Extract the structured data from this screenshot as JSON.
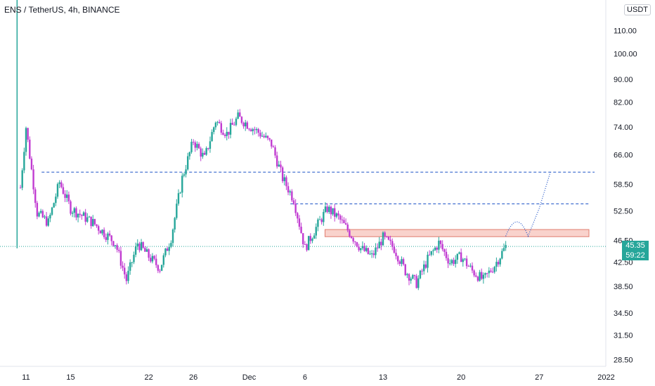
{
  "header": {
    "symbol_title": "ENS / TetherUS, 4h, BINANCE",
    "unit": "USDT"
  },
  "price_tag": {
    "price": "45.35",
    "countdown": "59:22"
  },
  "colors": {
    "up": "#26a69a",
    "down": "#c13bd1",
    "level_line": "#1e53c7",
    "zone_fill": "#f9d2cc",
    "zone_border": "#e07c6e",
    "current_line": "#26a69a",
    "axis_text": "#131722"
  },
  "chart_data": {
    "type": "candlestick",
    "title": "ENS / TetherUS, 4h, BINANCE",
    "y_axis": {
      "scale": "log",
      "ticks": [
        "110.00",
        "100.00",
        "90.00",
        "82.00",
        "74.00",
        "66.00",
        "58.50",
        "52.50",
        "46.50",
        "42.50",
        "38.50",
        "34.50",
        "31.50",
        "28.50"
      ],
      "range": [
        26.5,
        130
      ]
    },
    "x_axis": {
      "ticks": [
        "11",
        "15",
        "22",
        "26",
        "Dec",
        "6",
        "13",
        "20",
        "27",
        "2022"
      ]
    },
    "price_path": [
      {
        "date": "Nov 10",
        "close": 45
      },
      {
        "date": "Nov 11",
        "close": 74
      },
      {
        "date": "Nov 12",
        "close": 52
      },
      {
        "date": "Nov 13",
        "close": 50
      },
      {
        "date": "Nov 14",
        "close": 59
      },
      {
        "date": "Nov 15",
        "close": 53
      },
      {
        "date": "Nov 17",
        "close": 50
      },
      {
        "date": "Nov 19",
        "close": 46
      },
      {
        "date": "Nov 20",
        "close": 39.5
      },
      {
        "date": "Nov 21",
        "close": 46
      },
      {
        "date": "Nov 22",
        "close": 43.5
      },
      {
        "date": "Nov 23",
        "close": 41.5
      },
      {
        "date": "Nov 24",
        "close": 47
      },
      {
        "date": "Nov 25",
        "close": 60
      },
      {
        "date": "Nov 26",
        "close": 70
      },
      {
        "date": "Nov 27",
        "close": 65
      },
      {
        "date": "Nov 28",
        "close": 76
      },
      {
        "date": "Nov 29",
        "close": 72
      },
      {
        "date": "Nov 30",
        "close": 77
      },
      {
        "date": "Dec 1",
        "close": 72
      },
      {
        "date": "Dec 2",
        "close": 69
      },
      {
        "date": "Dec 3",
        "close": 60
      },
      {
        "date": "Dec 4",
        "close": 55
      },
      {
        "date": "Dec 5",
        "close": 45
      },
      {
        "date": "Dec 6",
        "close": 49
      },
      {
        "date": "Dec 7",
        "close": 53
      },
      {
        "date": "Dec 8",
        "close": 51
      },
      {
        "date": "Dec 9",
        "close": 48
      },
      {
        "date": "Dec 10",
        "close": 45
      },
      {
        "date": "Dec 11",
        "close": 43.5
      },
      {
        "date": "Dec 12",
        "close": 47
      },
      {
        "date": "Dec 13",
        "close": 45
      },
      {
        "date": "Dec 14",
        "close": 41
      },
      {
        "date": "Dec 15",
        "close": 39
      },
      {
        "date": "Dec 16",
        "close": 43
      },
      {
        "date": "Dec 17",
        "close": 46
      },
      {
        "date": "Dec 18",
        "close": 42.5
      },
      {
        "date": "Dec 19",
        "close": 43.5
      },
      {
        "date": "Dec 20",
        "close": 41
      },
      {
        "date": "Dec 21",
        "close": 39.5
      },
      {
        "date": "Dec 22",
        "close": 42
      },
      {
        "date": "Dec 23",
        "close": 45.35
      }
    ],
    "horizontal_levels": [
      61.5,
      54
    ],
    "zone": {
      "low": 47.2,
      "high": 48.6
    },
    "current_price": 45.35,
    "projection": [
      {
        "date": "Dec 23",
        "value": 47.3
      },
      {
        "date": "Dec 24",
        "value": 50.5
      },
      {
        "date": "Dec 25",
        "value": 47.3
      },
      {
        "date": "Dec 26",
        "value": 53
      },
      {
        "date": "Dec 27",
        "value": 61.5
      }
    ]
  }
}
